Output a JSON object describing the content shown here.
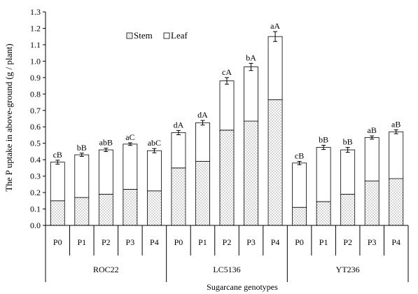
{
  "chart_data": {
    "type": "bar",
    "stacked": true,
    "xlabel": "Sugarcane genotypes",
    "ylabel": "The P uptake in above-ground (g / plant)",
    "ylim": [
      0,
      1.3
    ],
    "yticks": [
      "0.0",
      "0.1",
      "0.2",
      "0.3",
      "0.4",
      "0.5",
      "0.6",
      "0.7",
      "0.8",
      "0.9",
      "1.0",
      "1.1",
      "1.2",
      "1.3"
    ],
    "legend_position": "top-left",
    "legend": [
      {
        "name": "Stem",
        "pattern": "dotted"
      },
      {
        "name": "Leaf",
        "pattern": "empty"
      }
    ],
    "groups": [
      {
        "name": "ROC22",
        "categories": [
          "P0",
          "P1",
          "P2",
          "P3",
          "P4"
        ]
      },
      {
        "name": "LC5136",
        "categories": [
          "P0",
          "P1",
          "P2",
          "P3",
          "P4"
        ]
      },
      {
        "name": "YT236",
        "categories": [
          "P0",
          "P1",
          "P2",
          "P3",
          "P4"
        ]
      }
    ],
    "series": [
      {
        "name": "Stem",
        "values": [
          0.15,
          0.17,
          0.19,
          0.22,
          0.21,
          0.35,
          0.39,
          0.58,
          0.635,
          0.765,
          0.11,
          0.145,
          0.19,
          0.27,
          0.285
        ]
      },
      {
        "name": "Leaf",
        "values": [
          0.235,
          0.26,
          0.27,
          0.275,
          0.245,
          0.215,
          0.235,
          0.3,
          0.33,
          0.385,
          0.27,
          0.33,
          0.27,
          0.265,
          0.285
        ]
      }
    ],
    "totals": [
      0.385,
      0.43,
      0.46,
      0.495,
      0.455,
      0.565,
      0.625,
      0.88,
      0.965,
      1.15,
      0.38,
      0.475,
      0.46,
      0.535,
      0.57
    ],
    "errors": [
      0.012,
      0.01,
      0.01,
      0.008,
      0.013,
      0.013,
      0.014,
      0.02,
      0.022,
      0.03,
      0.01,
      0.013,
      0.015,
      0.01,
      0.012
    ],
    "annotations": [
      "cB",
      "bB",
      "abB",
      "aC",
      "abC",
      "dA",
      "dA",
      "cA",
      "bA",
      "aA",
      "cB",
      "bB",
      "bB",
      "aB",
      "aB"
    ]
  }
}
